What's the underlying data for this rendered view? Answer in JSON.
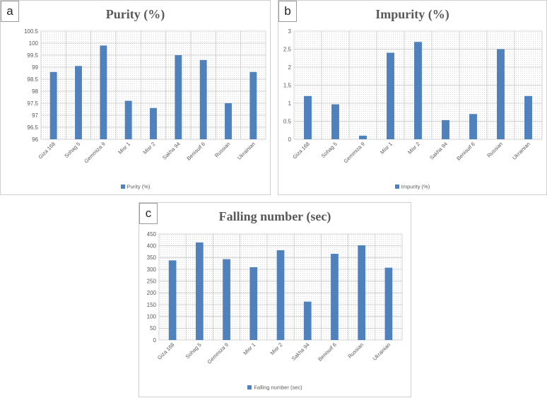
{
  "panels": {
    "a": {
      "label": "a"
    },
    "b": {
      "label": "b"
    },
    "c": {
      "label": "c"
    }
  },
  "chart_data": [
    {
      "type": "bar",
      "title": "Purity (%)",
      "categories": [
        "Giza 168",
        "Sohag 5",
        "Gemmiza 9",
        "Misr 1",
        "Misr 2",
        "Sakha 94",
        "Benisuif 6",
        "Russian",
        "Ukrainian"
      ],
      "series": [
        {
          "name": "Purity (%)",
          "values": [
            98.8,
            99.05,
            99.9,
            97.6,
            97.3,
            99.5,
            99.3,
            97.5,
            98.8
          ]
        }
      ],
      "ylim": [
        96,
        100.5
      ],
      "yticks": [
        "96",
        "96.5",
        "97",
        "97.5",
        "98",
        "98.5",
        "99",
        "99.5",
        "100",
        "100.5"
      ],
      "grid": true,
      "legend_position": "bottom",
      "bar_color": "#4f81bd"
    },
    {
      "type": "bar",
      "title": "Impurity (%)",
      "categories": [
        "Giza 168",
        "Sohag 5",
        "Gemmiza 9",
        "Misr 1",
        "Misr 2",
        "Sakha 94",
        "Benisuif 6",
        "Russian",
        "Ukrainian"
      ],
      "series": [
        {
          "name": "Impurity (%)",
          "values": [
            1.2,
            0.97,
            0.1,
            2.4,
            2.7,
            0.53,
            0.7,
            2.5,
            1.2
          ]
        }
      ],
      "ylim": [
        0,
        3
      ],
      "yticks": [
        "0",
        "0.5",
        "1",
        "1.5",
        "2",
        "2.5",
        "3"
      ],
      "grid": true,
      "legend_position": "bottom",
      "bar_color": "#4f81bd"
    },
    {
      "type": "bar",
      "title": "Falling number (sec)",
      "categories": [
        "Giza 168",
        "Sohag 5",
        "Gemmiza 9",
        "Misr 1",
        "Misr 2",
        "Sakha 94",
        "Benisuif 6",
        "Russian",
        "Ukrainian"
      ],
      "series": [
        {
          "name": "Falling number (sec)",
          "values": [
            338,
            414,
            343,
            309,
            381,
            163,
            366,
            402,
            307
          ]
        }
      ],
      "ylim": [
        0,
        450
      ],
      "yticks": [
        "0",
        "50",
        "100",
        "150",
        "200",
        "250",
        "300",
        "350",
        "400",
        "450"
      ],
      "grid": true,
      "legend_position": "bottom",
      "bar_color": "#4f81bd"
    }
  ]
}
